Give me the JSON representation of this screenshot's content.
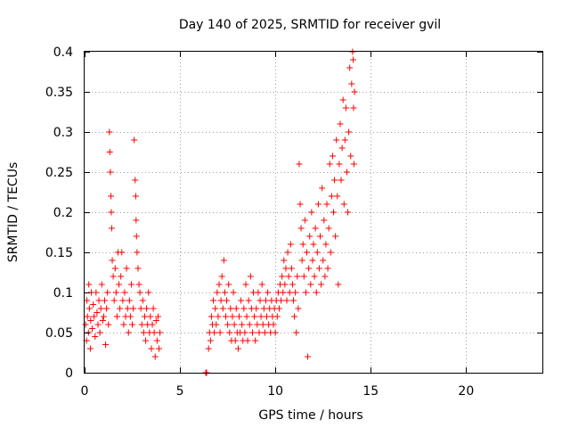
{
  "chart_data": {
    "type": "scatter",
    "title": "Day 140 of 2025, SRMTID for receiver gvil",
    "xlabel": "GPS time / hours",
    "ylabel": "SRMTID / TECUs",
    "xlim": [
      0,
      24
    ],
    "ylim": [
      0,
      0.4
    ],
    "xticks": [
      0,
      5,
      10,
      15,
      20
    ],
    "xtick_labels": [
      "0",
      "5",
      "10",
      "15",
      "20"
    ],
    "yticks": [
      0,
      0.05,
      0.1,
      0.15,
      0.2,
      0.25,
      0.3,
      0.35,
      0.4
    ],
    "ytick_labels": [
      "0",
      "0.05",
      "0.1",
      "0.15",
      "0.2",
      "0.25",
      "0.3",
      "0.35",
      "0.4"
    ],
    "grid": true,
    "marker": "+",
    "marker_color": "#ff0000",
    "series": [
      {
        "name": "SRMTID",
        "points": [
          [
            0.05,
            0.06
          ],
          [
            0.1,
            0.04
          ],
          [
            0.12,
            0.09
          ],
          [
            0.15,
            0.07
          ],
          [
            0.2,
            0.05
          ],
          [
            0.22,
            0.11
          ],
          [
            0.25,
            0.08
          ],
          [
            0.3,
            0.03
          ],
          [
            0.32,
            0.065
          ],
          [
            0.35,
            0.1
          ],
          [
            0.4,
            0.055
          ],
          [
            0.45,
            0.085
          ],
          [
            0.5,
            0.07
          ],
          [
            0.55,
            0.045
          ],
          [
            0.6,
            0.1
          ],
          [
            0.65,
            0.075
          ],
          [
            0.7,
            0.06
          ],
          [
            0.75,
            0.09
          ],
          [
            0.8,
            0.05
          ],
          [
            0.85,
            0.08
          ],
          [
            0.9,
            0.11
          ],
          [
            0.95,
            0.065
          ],
          [
            1.0,
            0.07
          ],
          [
            1.05,
            0.09
          ],
          [
            1.1,
            0.035
          ],
          [
            1.15,
            0.08
          ],
          [
            1.2,
            0.1
          ],
          [
            1.25,
            0.06
          ],
          [
            1.3,
            0.3
          ],
          [
            1.32,
            0.275
          ],
          [
            1.35,
            0.25
          ],
          [
            1.38,
            0.22
          ],
          [
            1.4,
            0.2
          ],
          [
            1.42,
            0.18
          ],
          [
            1.45,
            0.14
          ],
          [
            1.5,
            0.12
          ],
          [
            1.55,
            0.09
          ],
          [
            1.6,
            0.13
          ],
          [
            1.65,
            0.1
          ],
          [
            1.7,
            0.07
          ],
          [
            1.75,
            0.15
          ],
          [
            1.8,
            0.11
          ],
          [
            1.85,
            0.08
          ],
          [
            1.9,
            0.12
          ],
          [
            1.95,
            0.15
          ],
          [
            2.0,
            0.09
          ],
          [
            2.05,
            0.06
          ],
          [
            2.1,
            0.1
          ],
          [
            2.15,
            0.07
          ],
          [
            2.2,
            0.13
          ],
          [
            2.25,
            0.08
          ],
          [
            2.3,
            0.05
          ],
          [
            2.35,
            0.09
          ],
          [
            2.4,
            0.07
          ],
          [
            2.45,
            0.11
          ],
          [
            2.5,
            0.06
          ],
          [
            2.55,
            0.08
          ],
          [
            2.6,
            0.29
          ],
          [
            2.65,
            0.24
          ],
          [
            2.68,
            0.22
          ],
          [
            2.7,
            0.19
          ],
          [
            2.72,
            0.17
          ],
          [
            2.75,
            0.15
          ],
          [
            2.8,
            0.13
          ],
          [
            2.85,
            0.11
          ],
          [
            2.9,
            0.1
          ],
          [
            2.95,
            0.08
          ],
          [
            3.0,
            0.06
          ],
          [
            3.05,
            0.09
          ],
          [
            3.1,
            0.05
          ],
          [
            3.15,
            0.07
          ],
          [
            3.2,
            0.04
          ],
          [
            3.25,
            0.08
          ],
          [
            3.3,
            0.06
          ],
          [
            3.35,
            0.1
          ],
          [
            3.4,
            0.05
          ],
          [
            3.45,
            0.07
          ],
          [
            3.5,
            0.03
          ],
          [
            3.55,
            0.06
          ],
          [
            3.6,
            0.08
          ],
          [
            3.65,
            0.05
          ],
          [
            3.7,
            0.02
          ],
          [
            3.75,
            0.065
          ],
          [
            3.8,
            0.04
          ],
          [
            3.85,
            0.07
          ],
          [
            3.9,
            0.03
          ],
          [
            3.95,
            0.05
          ],
          [
            6.35,
            0.0
          ],
          [
            6.4,
            0.0
          ],
          [
            6.5,
            0.03
          ],
          [
            6.55,
            0.05
          ],
          [
            6.6,
            0.04
          ],
          [
            6.65,
            0.07
          ],
          [
            6.7,
            0.06
          ],
          [
            6.75,
            0.09
          ],
          [
            6.8,
            0.05
          ],
          [
            6.85,
            0.08
          ],
          [
            6.9,
            0.06
          ],
          [
            6.95,
            0.1
          ],
          [
            7.0,
            0.07
          ],
          [
            7.05,
            0.11
          ],
          [
            7.1,
            0.05
          ],
          [
            7.15,
            0.09
          ],
          [
            7.2,
            0.12
          ],
          [
            7.25,
            0.08
          ],
          [
            7.3,
            0.14
          ],
          [
            7.35,
            0.1
          ],
          [
            7.4,
            0.07
          ],
          [
            7.45,
            0.09
          ],
          [
            7.5,
            0.06
          ],
          [
            7.55,
            0.11
          ],
          [
            7.6,
            0.05
          ],
          [
            7.65,
            0.08
          ],
          [
            7.7,
            0.04
          ],
          [
            7.75,
            0.07
          ],
          [
            7.8,
            0.1
          ],
          [
            7.85,
            0.06
          ],
          [
            7.9,
            0.04
          ],
          [
            7.95,
            0.08
          ],
          [
            8.0,
            0.05
          ],
          [
            8.05,
            0.03
          ],
          [
            8.1,
            0.07
          ],
          [
            8.15,
            0.05
          ],
          [
            8.2,
            0.09
          ],
          [
            8.25,
            0.06
          ],
          [
            8.3,
            0.04
          ],
          [
            8.35,
            0.08
          ],
          [
            8.4,
            0.05
          ],
          [
            8.45,
            0.11
          ],
          [
            8.5,
            0.07
          ],
          [
            8.55,
            0.04
          ],
          [
            8.6,
            0.09
          ],
          [
            8.65,
            0.06
          ],
          [
            8.7,
            0.12
          ],
          [
            8.75,
            0.08
          ],
          [
            8.8,
            0.05
          ],
          [
            8.85,
            0.1
          ],
          [
            8.9,
            0.07
          ],
          [
            8.95,
            0.04
          ],
          [
            9.0,
            0.08
          ],
          [
            9.05,
            0.06
          ],
          [
            9.1,
            0.1
          ],
          [
            9.15,
            0.05
          ],
          [
            9.2,
            0.09
          ],
          [
            9.25,
            0.07
          ],
          [
            9.3,
            0.11
          ],
          [
            9.35,
            0.06
          ],
          [
            9.4,
            0.08
          ],
          [
            9.45,
            0.05
          ],
          [
            9.5,
            0.09
          ],
          [
            9.55,
            0.07
          ],
          [
            9.6,
            0.1
          ],
          [
            9.65,
            0.06
          ],
          [
            9.7,
            0.08
          ],
          [
            9.75,
            0.05
          ],
          [
            9.8,
            0.09
          ],
          [
            9.85,
            0.07
          ],
          [
            9.9,
            0.06
          ],
          [
            9.95,
            0.08
          ],
          [
            10.0,
            0.05
          ],
          [
            10.05,
            0.09
          ],
          [
            10.1,
            0.07
          ],
          [
            10.15,
            0.1
          ],
          [
            10.2,
            0.08
          ],
          [
            10.25,
            0.11
          ],
          [
            10.3,
            0.09
          ],
          [
            10.35,
            0.12
          ],
          [
            10.4,
            0.1
          ],
          [
            10.45,
            0.14
          ],
          [
            10.5,
            0.11
          ],
          [
            10.55,
            0.13
          ],
          [
            10.6,
            0.09
          ],
          [
            10.65,
            0.15
          ],
          [
            10.7,
            0.12
          ],
          [
            10.75,
            0.1
          ],
          [
            10.8,
            0.16
          ],
          [
            10.85,
            0.13
          ],
          [
            10.9,
            0.11
          ],
          [
            10.95,
            0.09
          ],
          [
            11.0,
            0.07
          ],
          [
            11.05,
            0.1
          ],
          [
            11.1,
            0.05
          ],
          [
            11.15,
            0.12
          ],
          [
            11.2,
            0.08
          ],
          [
            11.25,
            0.26
          ],
          [
            11.3,
            0.21
          ],
          [
            11.35,
            0.18
          ],
          [
            11.4,
            0.14
          ],
          [
            11.45,
            0.16
          ],
          [
            11.5,
            0.12
          ],
          [
            11.55,
            0.19
          ],
          [
            11.6,
            0.1
          ],
          [
            11.65,
            0.15
          ],
          [
            11.7,
            0.02
          ],
          [
            11.75,
            0.13
          ],
          [
            11.8,
            0.17
          ],
          [
            11.85,
            0.11
          ],
          [
            11.9,
            0.2
          ],
          [
            11.95,
            0.14
          ],
          [
            12.0,
            0.16
          ],
          [
            12.05,
            0.12
          ],
          [
            12.1,
            0.18
          ],
          [
            12.15,
            0.1
          ],
          [
            12.2,
            0.15
          ],
          [
            12.25,
            0.21
          ],
          [
            12.3,
            0.13
          ],
          [
            12.35,
            0.17
          ],
          [
            12.4,
            0.11
          ],
          [
            12.45,
            0.23
          ],
          [
            12.5,
            0.14
          ],
          [
            12.55,
            0.19
          ],
          [
            12.6,
            0.12
          ],
          [
            12.65,
            0.16
          ],
          [
            12.7,
            0.21
          ],
          [
            12.75,
            0.13
          ],
          [
            12.8,
            0.18
          ],
          [
            12.85,
            0.26
          ],
          [
            12.9,
            0.15
          ],
          [
            12.95,
            0.22
          ],
          [
            13.0,
            0.27
          ],
          [
            13.05,
            0.2
          ],
          [
            13.1,
            0.24
          ],
          [
            13.15,
            0.17
          ],
          [
            13.2,
            0.29
          ],
          [
            13.25,
            0.22
          ],
          [
            13.3,
            0.11
          ],
          [
            13.35,
            0.26
          ],
          [
            13.4,
            0.31
          ],
          [
            13.45,
            0.24
          ],
          [
            13.5,
            0.28
          ],
          [
            13.55,
            0.34
          ],
          [
            13.6,
            0.21
          ],
          [
            13.65,
            0.29
          ],
          [
            13.7,
            0.33
          ],
          [
            13.75,
            0.25
          ],
          [
            13.8,
            0.2
          ],
          [
            13.85,
            0.3
          ],
          [
            13.9,
            0.38
          ],
          [
            13.95,
            0.27
          ],
          [
            14.0,
            0.36
          ],
          [
            14.05,
            0.4
          ],
          [
            14.08,
            0.39
          ],
          [
            14.1,
            0.33
          ],
          [
            14.12,
            0.26
          ],
          [
            14.15,
            0.35
          ]
        ]
      }
    ]
  }
}
